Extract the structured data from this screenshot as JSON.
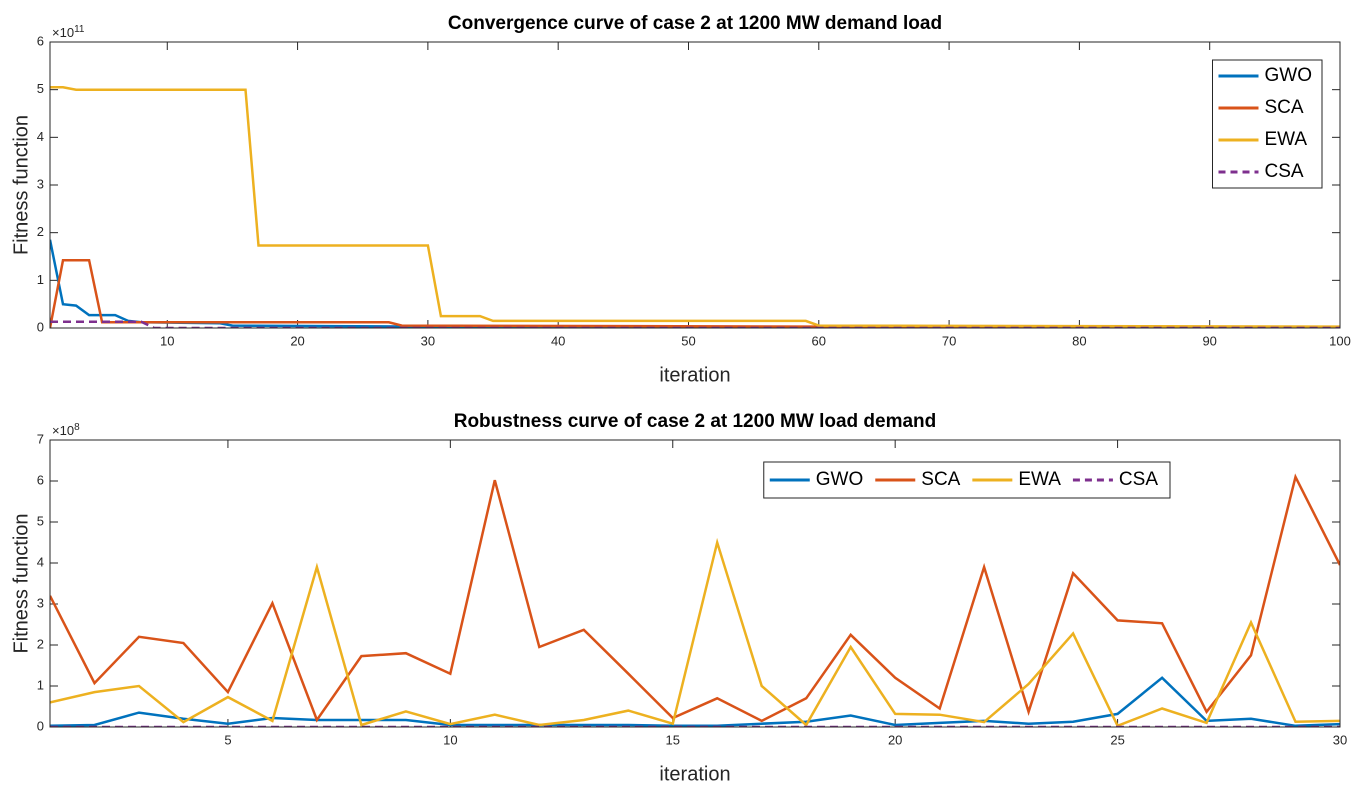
{
  "chart_data": [
    {
      "type": "line",
      "title": "Convergence curve of case 2 at 1200 MW demand load",
      "xlabel": "iteration",
      "ylabel": "Fitness function",
      "y_exponent": {
        "base": "×10",
        "power": "11"
      },
      "xlim": [
        1,
        100
      ],
      "xticks": [
        10,
        20,
        30,
        40,
        50,
        60,
        70,
        80,
        90,
        100
      ],
      "ylim": [
        0,
        6
      ],
      "yticks": [
        0,
        1,
        2,
        3,
        4,
        5,
        6
      ],
      "legend": {
        "location": "northeast",
        "orientation": "vertical"
      },
      "series": [
        {
          "name": "GWO",
          "color": "#0072bd",
          "dashed": false,
          "x": [
            1,
            2,
            3,
            4,
            6,
            7,
            8,
            14,
            15,
            30,
            60,
            100
          ],
          "values": [
            1.85,
            0.5,
            0.47,
            0.27,
            0.27,
            0.15,
            0.12,
            0.1,
            0.05,
            0.03,
            0.01,
            0.01
          ]
        },
        {
          "name": "SCA",
          "color": "#d95319",
          "dashed": false,
          "x": [
            1,
            2,
            4,
            5,
            27,
            28,
            60,
            100
          ],
          "values": [
            0,
            1.42,
            1.42,
            0.12,
            0.12,
            0.05,
            0.03,
            0.02
          ]
        },
        {
          "name": "EWA",
          "color": "#edb120",
          "dashed": false,
          "x": [
            1,
            2,
            3,
            16,
            17,
            30,
            31,
            34,
            35,
            59,
            60,
            100
          ],
          "values": [
            5.05,
            5.05,
            5.0,
            5.0,
            1.73,
            1.73,
            0.25,
            0.25,
            0.15,
            0.15,
            0.05,
            0.03
          ]
        },
        {
          "name": "CSA",
          "color": "#7e2f8e",
          "dashed": true,
          "x": [
            1,
            8,
            9,
            100
          ],
          "values": [
            0.13,
            0.13,
            0,
            0
          ]
        }
      ]
    },
    {
      "type": "line",
      "title": "Robustness curve of case 2 at 1200 MW load demand",
      "xlabel": "iteration",
      "ylabel": "Fitness function",
      "y_exponent": {
        "base": "×10",
        "power": "8"
      },
      "xlim": [
        1,
        30
      ],
      "xticks": [
        5,
        10,
        15,
        20,
        25,
        30
      ],
      "ylim": [
        0,
        7
      ],
      "yticks": [
        0,
        1,
        2,
        3,
        4,
        5,
        6,
        7
      ],
      "legend": {
        "location": "northeast",
        "orientation": "horizontal"
      },
      "x": [
        1,
        2,
        3,
        4,
        5,
        6,
        7,
        8,
        9,
        10,
        11,
        12,
        13,
        14,
        15,
        16,
        17,
        18,
        19,
        20,
        21,
        22,
        23,
        24,
        25,
        26,
        27,
        28,
        29,
        30
      ],
      "series": [
        {
          "name": "GWO",
          "color": "#0072bd",
          "dashed": false,
          "values": [
            0.03,
            0.05,
            0.35,
            0.2,
            0.08,
            0.22,
            0.17,
            0.17,
            0.17,
            0.05,
            0.05,
            0.05,
            0.05,
            0.05,
            0.03,
            0.03,
            0.08,
            0.13,
            0.28,
            0.05,
            0.1,
            0.15,
            0.08,
            0.13,
            0.32,
            1.2,
            0.15,
            0.2,
            0.03,
            0.07
          ]
        },
        {
          "name": "SCA",
          "color": "#d95319",
          "dashed": false,
          "values": [
            3.2,
            1.07,
            2.2,
            2.05,
            0.85,
            3.02,
            0.17,
            1.73,
            1.8,
            1.3,
            6.02,
            1.95,
            2.37,
            1.3,
            0.22,
            0.7,
            0.15,
            0.7,
            2.25,
            1.2,
            0.45,
            3.9,
            0.37,
            3.75,
            2.6,
            2.53,
            0.37,
            1.75,
            6.1,
            3.95
          ]
        },
        {
          "name": "EWA",
          "color": "#edb120",
          "dashed": false,
          "values": [
            0.6,
            0.85,
            1.0,
            0.12,
            0.73,
            0.15,
            3.9,
            0.05,
            0.38,
            0.07,
            0.3,
            0.05,
            0.17,
            0.4,
            0.08,
            4.5,
            1.0,
            0.05,
            1.95,
            0.32,
            0.3,
            0.12,
            1.05,
            2.28,
            0.03,
            0.45,
            0.1,
            2.55,
            0.13,
            0.15
          ]
        },
        {
          "name": "CSA",
          "color": "#7e2f8e",
          "dashed": true,
          "values": [
            0,
            0,
            0,
            0,
            0,
            0,
            0,
            0,
            0,
            0,
            0,
            0,
            0,
            0,
            0,
            0,
            0,
            0,
            0,
            0,
            0,
            0,
            0,
            0,
            0,
            0,
            0,
            0,
            0,
            0
          ]
        }
      ]
    }
  ]
}
